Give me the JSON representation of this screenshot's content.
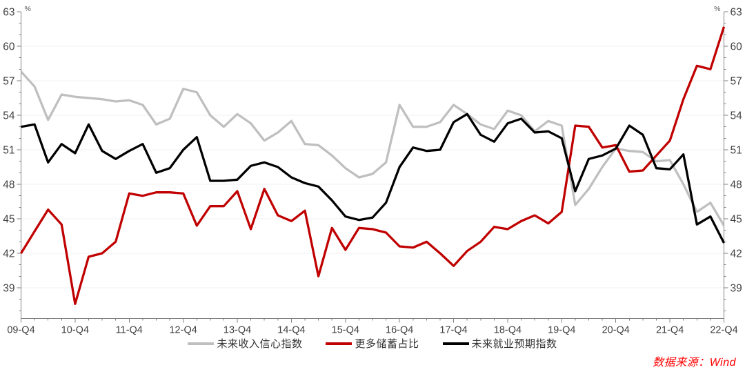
{
  "page": {
    "background": "#ffffff"
  },
  "chart_data": {
    "type": "line",
    "frequency": "quarterly",
    "x_start": "09-Q4",
    "x_end": "22-Q4",
    "x_tick_labels": [
      "09-Q4",
      "10-Q4",
      "11-Q4",
      "12-Q4",
      "13-Q4",
      "14-Q4",
      "15-Q4",
      "16-Q4",
      "17-Q4",
      "18-Q4",
      "19-Q4",
      "20-Q4",
      "21-Q4",
      "22-Q4"
    ],
    "y_axis": {
      "tick_min": 39,
      "tick_max": 63,
      "tick_step": 3,
      "minor_step": 1,
      "unit": "%",
      "ylim_top": 63
    },
    "grid": "horizontal-light",
    "grid_color": "#f2f2f2",
    "axis_color": "#808080",
    "axis_text_color": "#404040",
    "legend_position": "bottom-center",
    "series": [
      {
        "name": "未来收入信心指数",
        "color": "#bfbfbf",
        "values": [
          57.8,
          56.5,
          53.6,
          55.8,
          55.6,
          55.5,
          55.4,
          55.2,
          55.3,
          54.9,
          53.2,
          53.7,
          56.3,
          56.0,
          54.0,
          53.0,
          54.1,
          53.3,
          51.8,
          52.5,
          53.5,
          51.5,
          51.4,
          50.5,
          49.4,
          48.6,
          48.9,
          49.9,
          54.9,
          53.0,
          53.0,
          53.4,
          54.9,
          54.1,
          53.2,
          52.8,
          54.4,
          54.0,
          52.6,
          53.5,
          53.1,
          46.2,
          47.6,
          49.5,
          51.1,
          50.9,
          50.8,
          50.0,
          50.1,
          48.0,
          45.6,
          46.4,
          44.4
        ]
      },
      {
        "name": "更多储蓄占比",
        "color": "#c00000",
        "values": [
          42.0,
          43.9,
          45.8,
          44.5,
          37.6,
          41.7,
          42.0,
          43.0,
          47.2,
          47.0,
          47.3,
          47.3,
          47.2,
          44.4,
          46.1,
          46.1,
          47.4,
          44.1,
          47.6,
          45.3,
          44.8,
          45.7,
          40.0,
          44.2,
          42.3,
          44.2,
          44.1,
          43.8,
          42.6,
          42.5,
          43.0,
          42.0,
          40.9,
          42.2,
          43.0,
          44.3,
          44.1,
          44.8,
          45.3,
          44.6,
          45.6,
          53.1,
          53.0,
          51.2,
          51.4,
          49.1,
          49.2,
          50.5,
          51.8,
          55.4,
          58.3,
          58.0,
          61.7
        ]
      },
      {
        "name": "未来就业预期指数",
        "color": "#000000",
        "values": [
          53.0,
          53.2,
          49.9,
          51.5,
          50.7,
          53.2,
          50.9,
          50.2,
          50.9,
          51.5,
          49.0,
          49.4,
          51.0,
          52.1,
          48.3,
          48.3,
          48.4,
          49.6,
          49.9,
          49.5,
          48.6,
          48.1,
          47.8,
          46.6,
          45.2,
          44.9,
          45.1,
          46.4,
          49.5,
          51.2,
          50.9,
          51.0,
          53.4,
          54.1,
          52.3,
          51.7,
          53.3,
          53.7,
          52.5,
          52.6,
          52.0,
          47.4,
          50.2,
          50.5,
          51.1,
          53.1,
          52.3,
          49.4,
          49.3,
          50.6,
          44.5,
          45.2,
          42.9
        ]
      }
    ]
  },
  "footer": {
    "source_note": "数据来源：Wind",
    "color": "#ff0000"
  }
}
